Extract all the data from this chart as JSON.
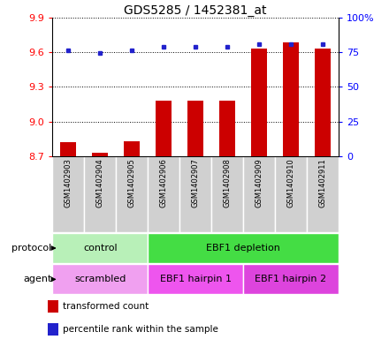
{
  "title": "GDS5285 / 1452381_at",
  "samples": [
    "GSM1402903",
    "GSM1402904",
    "GSM1402905",
    "GSM1402906",
    "GSM1402907",
    "GSM1402908",
    "GSM1402909",
    "GSM1402910",
    "GSM1402911"
  ],
  "transformed_counts": [
    8.82,
    8.73,
    8.83,
    9.18,
    9.18,
    9.18,
    9.63,
    9.68,
    9.63
  ],
  "percentile_ranks": [
    76.0,
    74.5,
    76.5,
    79.0,
    78.5,
    78.5,
    80.5,
    81.0,
    80.5
  ],
  "ylim_left": [
    8.7,
    9.9
  ],
  "ylim_right": [
    0,
    100
  ],
  "yticks_left": [
    8.7,
    9.0,
    9.3,
    9.6,
    9.9
  ],
  "yticks_right": [
    0,
    25,
    50,
    75,
    100
  ],
  "bar_color": "#cc0000",
  "dot_color": "#2222cc",
  "plot_bg": "#ffffff",
  "sample_bg": "#d0d0d0",
  "protocol_colors": [
    "#b8f0b8",
    "#44dd44"
  ],
  "agent_colors": [
    "#f0a0f0",
    "#ee55ee",
    "#dd44dd"
  ],
  "protocol_labels": [
    "control",
    "EBF1 depletion"
  ],
  "protocol_starts": [
    0,
    3
  ],
  "protocol_ends": [
    3,
    9
  ],
  "agent_labels": [
    "scrambled",
    "EBF1 hairpin 1",
    "EBF1 hairpin 2"
  ],
  "agent_starts": [
    0,
    3,
    6
  ],
  "agent_ends": [
    3,
    6,
    9
  ],
  "legend_items": [
    {
      "label": "transformed count",
      "color": "#cc0000"
    },
    {
      "label": "percentile rank within the sample",
      "color": "#2222cc"
    }
  ],
  "title_fontsize": 10,
  "tick_fontsize": 8,
  "label_fontsize": 8,
  "sample_fontsize": 6
}
